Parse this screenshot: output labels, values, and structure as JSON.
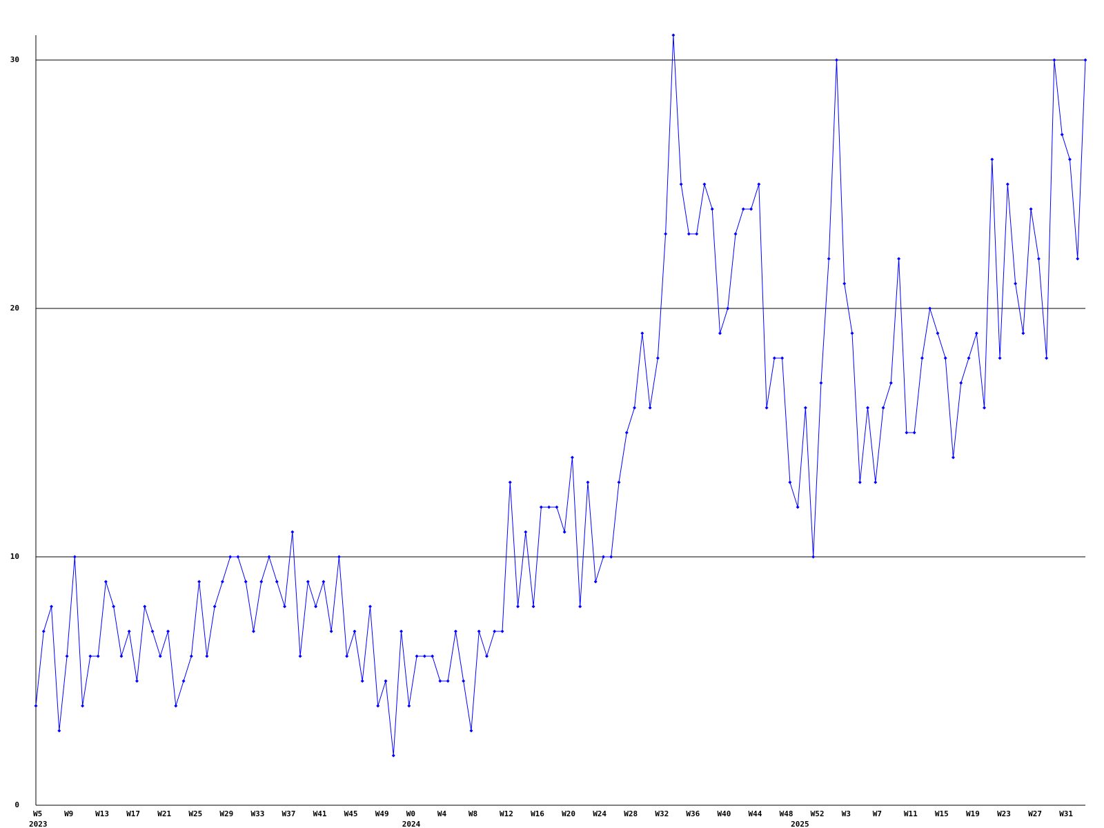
{
  "chart_data": {
    "type": "line",
    "categories": [
      "W5",
      null,
      null,
      null,
      "W9",
      null,
      null,
      null,
      "W13",
      null,
      null,
      null,
      "W17",
      null,
      null,
      null,
      "W21",
      null,
      null,
      null,
      "W25",
      null,
      null,
      null,
      "W29",
      null,
      null,
      null,
      "W33",
      null,
      null,
      null,
      "W37",
      null,
      null,
      null,
      "W41",
      null,
      null,
      null,
      "W45",
      null,
      null,
      null,
      "W49",
      null,
      null,
      null,
      "W0",
      null,
      null,
      null,
      "W4",
      null,
      null,
      null,
      "W8",
      null,
      null,
      null,
      "W12",
      null,
      null,
      null,
      "W16",
      null,
      null,
      null,
      "W20",
      null,
      null,
      null,
      "W24",
      null,
      null,
      null,
      "W28",
      null,
      null,
      null,
      "W32",
      null,
      null,
      null,
      "W36",
      null,
      null,
      null,
      "W40",
      null,
      null,
      null,
      "W44",
      null,
      null,
      null,
      "W48",
      null,
      null,
      null,
      "W52",
      null,
      null,
      null,
      "W3",
      null,
      null,
      null,
      "W7",
      null,
      null,
      null,
      "W11",
      null,
      null,
      null,
      "W15",
      null,
      null,
      null,
      "W19",
      null,
      null,
      null,
      "W23",
      null,
      null,
      null,
      "W27",
      null,
      null,
      null,
      "W31",
      null,
      null,
      null
    ],
    "years": [
      "2023",
      null,
      null,
      null,
      null,
      null,
      null,
      null,
      null,
      null,
      null,
      null,
      null,
      null,
      null,
      null,
      null,
      null,
      null,
      null,
      null,
      null,
      null,
      null,
      null,
      null,
      null,
      null,
      null,
      null,
      null,
      null,
      null,
      null,
      null,
      null,
      null,
      null,
      null,
      null,
      null,
      null,
      null,
      null,
      null,
      null,
      null,
      null,
      "2024",
      null,
      null,
      null,
      null,
      null,
      null,
      null,
      null,
      null,
      null,
      null,
      null,
      null,
      null,
      null,
      null,
      null,
      null,
      null,
      null,
      null,
      null,
      null,
      null,
      null,
      null,
      null,
      null,
      null,
      null,
      null,
      null,
      null,
      null,
      null,
      null,
      null,
      null,
      null,
      null,
      null,
      null,
      null,
      null,
      null,
      null,
      null,
      null,
      null,
      "2025",
      null,
      null,
      null,
      null,
      null,
      null,
      null,
      null,
      null,
      null,
      null,
      null,
      null,
      null,
      null,
      null,
      null,
      null,
      null,
      null,
      null,
      null,
      null,
      null,
      null,
      null,
      null,
      null,
      null,
      null,
      null,
      null,
      null,
      null,
      null
    ],
    "values": [
      4,
      7,
      8,
      3,
      6,
      10,
      4,
      6,
      6,
      9,
      8,
      6,
      7,
      5,
      8,
      7,
      6,
      7,
      4,
      5,
      6,
      9,
      6,
      8,
      9,
      10,
      10,
      9,
      7,
      9,
      10,
      9,
      8,
      11,
      6,
      9,
      8,
      9,
      7,
      10,
      6,
      7,
      5,
      8,
      4,
      5,
      2,
      7,
      4,
      6,
      6,
      6,
      5,
      5,
      7,
      5,
      3,
      7,
      6,
      7,
      7,
      13,
      8,
      11,
      8,
      12,
      12,
      12,
      11,
      14,
      8,
      13,
      9,
      10,
      10,
      13,
      15,
      16,
      19,
      16,
      18,
      23,
      31,
      25,
      23,
      23,
      25,
      24,
      19,
      20,
      23,
      24,
      24,
      25,
      16,
      18,
      18,
      13,
      12,
      16,
      10,
      17,
      22,
      30,
      21,
      19,
      13,
      16,
      13,
      16,
      17,
      22,
      15,
      15,
      18,
      20,
      19,
      18,
      14,
      17,
      18,
      19,
      16,
      26,
      18,
      25,
      21,
      19,
      24,
      22,
      18,
      30,
      27,
      26,
      22,
      30
    ],
    "color": "#0000ff",
    "ylim": [
      0,
      31
    ],
    "yticks": [
      0,
      10,
      20,
      30
    ],
    "grid": true
  }
}
